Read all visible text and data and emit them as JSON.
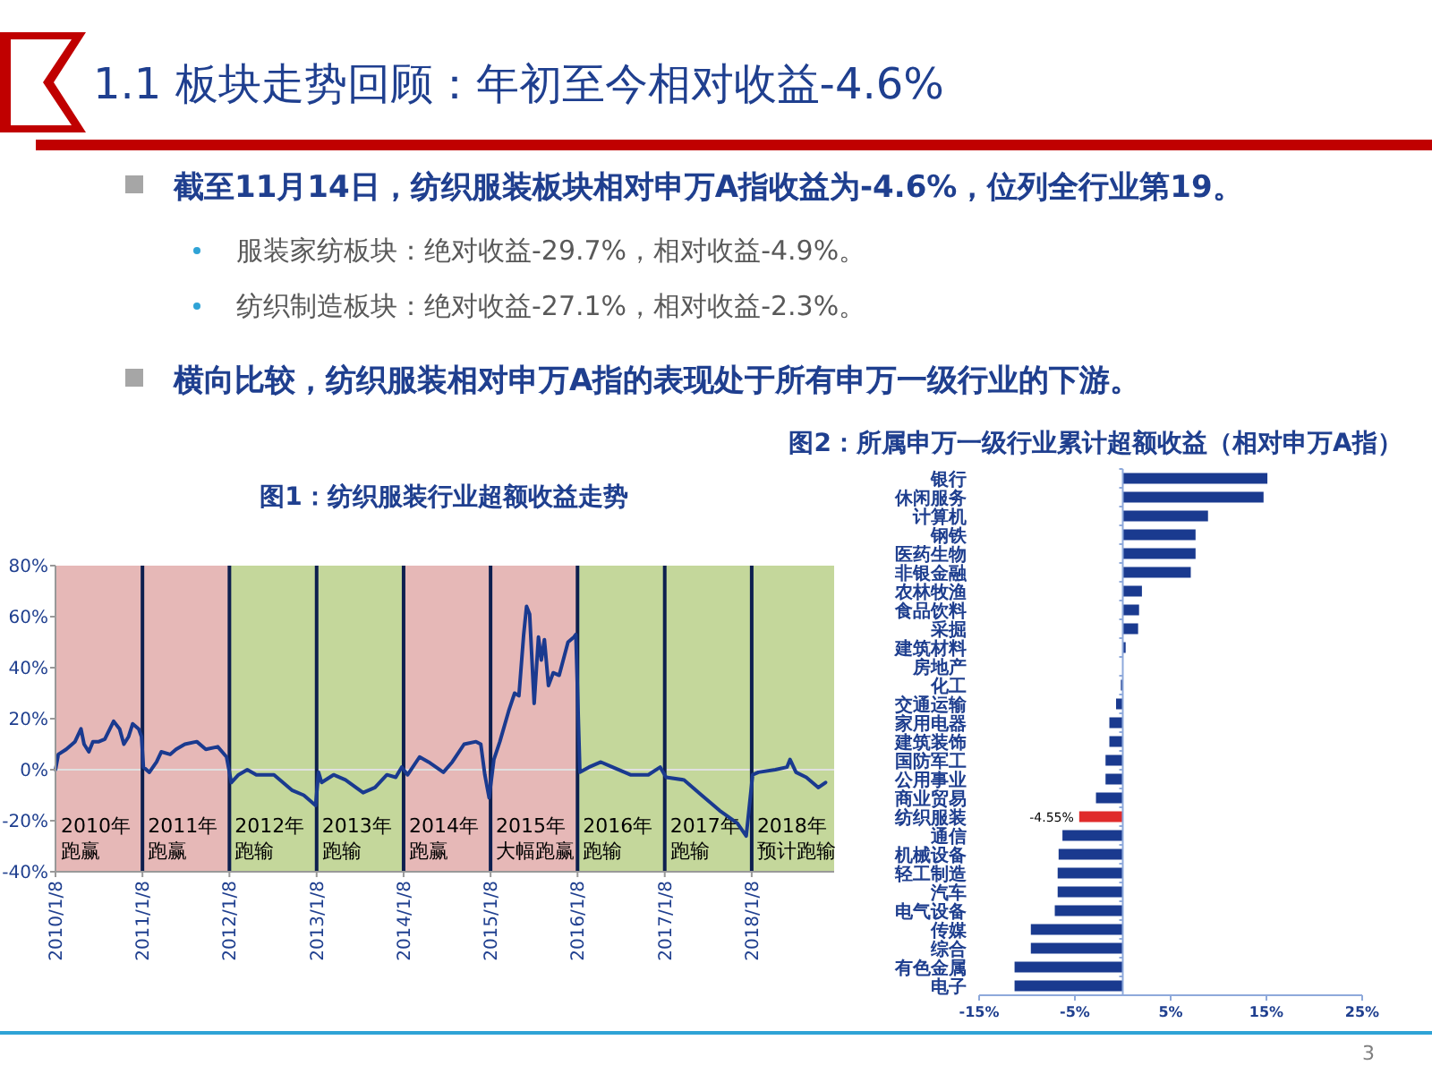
{
  "chart_data": [
    {
      "type": "other",
      "title": "1.1 板块走势回顾：年初至今相对收益-4.6%",
      "annotations": [
        "截至11月14日，纺织服装板块相对申万A指收益为-4.6%，位列全行业第19。",
        "服装家纺板块：绝对收益-29.7%，相对收益-4.9%。",
        "纺织制造板块：绝对收益-27.1%，相对收益-2.3%。",
        "横向比较，纺织服装相对申万A指的表现处于所有申万一级行业的下游。",
        "3"
      ]
    },
    {
      "type": "line",
      "title": "图1：纺织服装行业超额收益走势",
      "series": [
        {
          "color": "#1a3a8f",
          "x": [
            "2010-01-08",
            "2010-01-20",
            "2010-02-22",
            "2010-03-31",
            "2010-04-25",
            "2010-05-08",
            "2010-05-28",
            "2010-06-14",
            "2010-07-09",
            "2010-08-03",
            "2010-09-09",
            "2010-10-04",
            "2010-10-22",
            "2010-11-11",
            "2010-11-28",
            "2010-12-23",
            "2011-01-04",
            "2011-01-12",
            "2011-02-06",
            "2011-03-08",
            "2011-03-28",
            "2011-05-04",
            "2011-05-29",
            "2011-07-05",
            "2011-08-24",
            "2011-10-01",
            "2011-11-20",
            "2011-12-27",
            "2012-01-16",
            "2012-02-15",
            "2012-03-23",
            "2012-04-30",
            "2012-07-13",
            "2012-09-26",
            "2012-11-15",
            "2013-01-04",
            "2013-01-16",
            "2013-01-29",
            "2013-03-20",
            "2013-05-09",
            "2013-07-22",
            "2013-09-10",
            "2013-10-30",
            "2013-12-06",
            "2013-12-31",
            "2014-01-25",
            "2014-03-16",
            "2014-04-23",
            "2014-06-24",
            "2014-07-31",
            "2014-09-19",
            "2014-11-08",
            "2014-11-28",
            "2014-12-15",
            "2015-01-02",
            "2015-01-22",
            "2015-02-16",
            "2015-03-25",
            "2015-04-19",
            "2015-05-07",
            "2015-05-27",
            "2015-06-08",
            "2015-06-21",
            "2015-07-10",
            "2015-07-28",
            "2015-08-09",
            "2015-08-22",
            "2015-09-08",
            "2015-09-28",
            "2015-10-23",
            "2015-11-29",
            "2015-12-24",
            "2016-01-01",
            "2016-01-18",
            "2016-02-25",
            "2016-04-15",
            "2016-06-03",
            "2016-08-17",
            "2016-10-31",
            "2016-12-20",
            "2017-01-14",
            "2017-03-30",
            "2017-06-12",
            "2017-08-26",
            "2017-11-09",
            "2017-12-16",
            "2018-01-12",
            "2018-02-05",
            "2018-04-17",
            "2018-06-05",
            "2018-06-18",
            "2018-07-13",
            "2018-08-25",
            "2018-10-15",
            "2018-11-14"
          ],
          "values": [
            0,
            6,
            8,
            11,
            16,
            10,
            7,
            11,
            11,
            12,
            19,
            16,
            10,
            13,
            18,
            16,
            13,
            1,
            -1,
            3,
            7,
            6,
            8,
            10,
            11,
            8,
            9,
            5,
            -5,
            -2,
            0,
            -2,
            -2,
            -8,
            -10,
            -14,
            -1,
            -5,
            -2,
            -4,
            -9,
            -7,
            -2,
            -3,
            1,
            -2,
            5,
            3,
            -1,
            3,
            10,
            11,
            10,
            -2,
            -11,
            4,
            11,
            23,
            30,
            29,
            53,
            64,
            61,
            26,
            52,
            43,
            51,
            33,
            38,
            37,
            50,
            52,
            53,
            -1,
            1,
            3,
            1,
            -2,
            -2,
            1,
            -3,
            -4,
            -10,
            -16,
            -21,
            -26,
            -2,
            -1,
            0,
            1,
            4,
            -1,
            -3,
            -7,
            -5
          ]
        }
      ],
      "xlim": [
        "2010-01-08",
        "2018-12-20"
      ],
      "xticks": [
        {
          "value": "2010-01-08",
          "label": "2010/1/8"
        },
        {
          "value": "2011-01-08",
          "label": "2011/1/8"
        },
        {
          "value": "2012-01-08",
          "label": "2012/1/8"
        },
        {
          "value": "2013-01-08",
          "label": "2013/1/8"
        },
        {
          "value": "2014-01-08",
          "label": "2014/1/8"
        },
        {
          "value": "2015-01-08",
          "label": "2015/1/8"
        },
        {
          "value": "2016-01-08",
          "label": "2016/1/8"
        },
        {
          "value": "2017-01-08",
          "label": "2017/1/8"
        },
        {
          "value": "2018-01-08",
          "label": "2018/1/8"
        }
      ],
      "ylim": [
        -40,
        80
      ],
      "yticks": [
        {
          "value": -40,
          "label": "-40%"
        },
        {
          "value": -20,
          "label": "-20%"
        },
        {
          "value": 0,
          "label": "0%"
        },
        {
          "value": 20,
          "label": "20%"
        },
        {
          "value": 40,
          "label": "40%"
        },
        {
          "value": 60,
          "label": "60%"
        },
        {
          "value": 80,
          "label": "80%"
        }
      ],
      "bands": [
        {
          "axis": "x",
          "from": "2010-01-08",
          "to": "2011-01-08",
          "label": "2010年跑赢",
          "color": "#e6b8b7"
        },
        {
          "axis": "x",
          "from": "2011-01-08",
          "to": "2012-01-08",
          "label": "2011年跑赢",
          "color": "#e6b8b7"
        },
        {
          "axis": "x",
          "from": "2012-01-08",
          "to": "2013-01-08",
          "label": "2012年跑输",
          "color": "#c4d79b"
        },
        {
          "axis": "x",
          "from": "2013-01-08",
          "to": "2014-01-08",
          "label": "2013年跑输",
          "color": "#c4d79b"
        },
        {
          "axis": "x",
          "from": "2014-01-08",
          "to": "2015-01-08",
          "label": "2014年跑赢",
          "color": "#e6b8b7"
        },
        {
          "axis": "x",
          "from": "2015-01-08",
          "to": "2016-01-08",
          "label": "2015年大幅跑赢",
          "color": "#e6b8b7"
        },
        {
          "axis": "x",
          "from": "2016-01-08",
          "to": "2017-01-08",
          "label": "2016年跑输",
          "color": "#c4d79b"
        },
        {
          "axis": "x",
          "from": "2017-01-08",
          "to": "2018-01-08",
          "label": "2017年跑输",
          "color": "#c4d79b"
        },
        {
          "axis": "x",
          "from": "2018-01-08",
          "to": "2018-12-20",
          "label": "2018年预计跑输",
          "color": "#c4d79b"
        }
      ],
      "ref_lines": [
        {
          "axis": "y",
          "value": 0,
          "color": "#e0e0e0"
        },
        {
          "axis": "x",
          "value": "2011-01-08",
          "color": "#0d1f4f"
        },
        {
          "axis": "x",
          "value": "2012-01-08",
          "color": "#0d1f4f"
        },
        {
          "axis": "x",
          "value": "2013-01-08",
          "color": "#0d1f4f"
        },
        {
          "axis": "x",
          "value": "2014-01-08",
          "color": "#0d1f4f"
        },
        {
          "axis": "x",
          "value": "2015-01-08",
          "color": "#0d1f4f"
        },
        {
          "axis": "x",
          "value": "2016-01-08",
          "color": "#0d1f4f"
        },
        {
          "axis": "x",
          "value": "2017-01-08",
          "color": "#0d1f4f"
        },
        {
          "axis": "x",
          "value": "2018-01-08",
          "color": "#0d1f4f"
        }
      ]
    },
    {
      "type": "bar",
      "orientation": "horizontal",
      "title": "图2：所属申万一级行业累计超额收益（相对申万A指）",
      "categories": [
        "银行",
        "休闲服务",
        "计算机",
        "钢铁",
        "医药生物",
        "非银金融",
        "农林牧渔",
        "食品饮料",
        "采掘",
        "建筑材料",
        "房地产",
        "化工",
        "交通运输",
        "家用电器",
        "建筑装饰",
        "国防军工",
        "公用事业",
        "商业贸易",
        "纺织服装",
        "通信",
        "机械设备",
        "轻工制造",
        "汽车",
        "电气设备",
        "传媒",
        "综合",
        "有色金属",
        "电子"
      ],
      "values": [
        15.1,
        14.7,
        8.9,
        7.6,
        7.6,
        7.1,
        2,
        1.7,
        1.6,
        0.3,
        null,
        -0.2,
        -0.7,
        -1.4,
        -1.4,
        -1.8,
        -1.8,
        -2.8,
        -4.55,
        -6.3,
        -6.7,
        -6.8,
        -6.8,
        -7.1,
        -9.6,
        -9.6,
        -11.3,
        -11.3
      ],
      "colors": [
        "#1a3a8f",
        "#1a3a8f",
        "#1a3a8f",
        "#1a3a8f",
        "#1a3a8f",
        "#1a3a8f",
        "#1a3a8f",
        "#1a3a8f",
        "#1a3a8f",
        "#1a3a8f",
        null,
        "#1a3a8f",
        "#1a3a8f",
        "#1a3a8f",
        "#1a3a8f",
        "#1a3a8f",
        "#1a3a8f",
        "#1a3a8f",
        "#e02b2b",
        "#1a3a8f",
        "#1a3a8f",
        "#1a3a8f",
        "#1a3a8f",
        "#1a3a8f",
        "#1a3a8f",
        "#1a3a8f",
        "#1a3a8f",
        "#1a3a8f"
      ],
      "ref_lines": [
        {
          "axis": "x",
          "value": 0,
          "color": "#8ea9db"
        }
      ],
      "value_labels": [
        null,
        null,
        null,
        null,
        null,
        null,
        null,
        null,
        null,
        null,
        null,
        null,
        null,
        null,
        null,
        null,
        null,
        null,
        "-4.55%",
        null,
        null,
        null,
        null,
        null,
        null,
        null,
        null,
        null
      ],
      "xlim": [
        -15,
        25
      ],
      "xticks": [
        {
          "value": -15,
          "label": "-15%"
        },
        {
          "value": -5,
          "label": "-5%"
        },
        {
          "value": 5,
          "label": "5%"
        },
        {
          "value": 15,
          "label": "15%"
        },
        {
          "value": 25,
          "label": "25%"
        }
      ]
    }
  ]
}
